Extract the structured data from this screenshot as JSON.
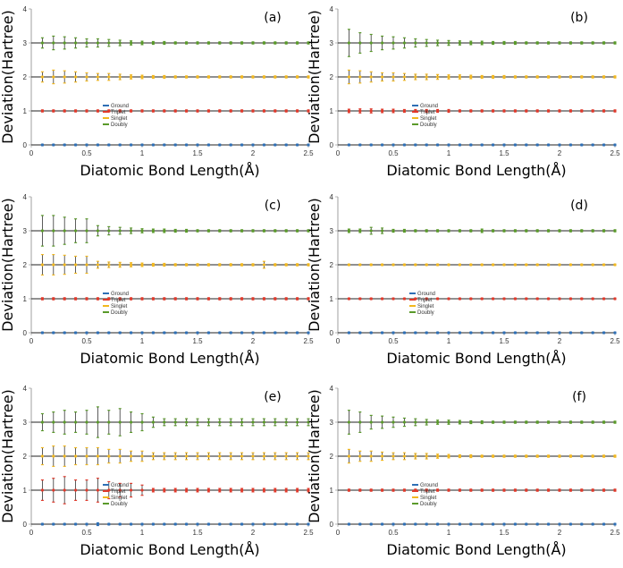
{
  "chart_data": [
    {
      "type": "scatter",
      "panel_label": "(a)",
      "xlabel": "Diatomic Bond Length(Å)",
      "ylabel": "Deviation(Hartree)",
      "xlim": [
        0,
        2.5
      ],
      "ylim": [
        0,
        4
      ],
      "xticks": [
        "0",
        "0.5",
        "1",
        "1.5",
        "2",
        "2.5"
      ],
      "yticks": [
        "0",
        "1",
        "2",
        "3",
        "4"
      ],
      "legend_position": "center",
      "series": [
        {
          "name": "Ground",
          "color": "#2e6fb5",
          "offset": 0,
          "errors": [
            0.02,
            0.02,
            0.02,
            0.02,
            0.02,
            0.02,
            0.02,
            0.02,
            0.02,
            0.02,
            0.02,
            0.02,
            0.02,
            0.02,
            0.02,
            0.02,
            0.02,
            0.02,
            0.02,
            0.02,
            0.02,
            0.02,
            0.02,
            0.02,
            0.02
          ]
        },
        {
          "name": "Triplet",
          "color": "#e0392b",
          "offset": 1,
          "errors": [
            0.03,
            0.03,
            0.03,
            0.03,
            0.03,
            0.03,
            0.03,
            0.03,
            0.03,
            0.03,
            0.03,
            0.03,
            0.03,
            0.03,
            0.03,
            0.03,
            0.03,
            0.03,
            0.03,
            0.03,
            0.03,
            0.03,
            0.03,
            0.03,
            0.03
          ]
        },
        {
          "name": "Singlet",
          "color": "#f2b81f",
          "offset": 2,
          "errors": [
            0.15,
            0.2,
            0.18,
            0.15,
            0.12,
            0.1,
            0.1,
            0.08,
            0.06,
            0.05,
            0.04,
            0.04,
            0.03,
            0.03,
            0.03,
            0.03,
            0.03,
            0.03,
            0.03,
            0.03,
            0.03,
            0.03,
            0.03,
            0.03,
            0.03
          ]
        },
        {
          "name": "Doubly",
          "color": "#5a9a2a",
          "offset": 3,
          "errors": [
            0.15,
            0.2,
            0.18,
            0.15,
            0.12,
            0.12,
            0.1,
            0.08,
            0.06,
            0.05,
            0.04,
            0.04,
            0.03,
            0.03,
            0.03,
            0.03,
            0.03,
            0.03,
            0.03,
            0.03,
            0.03,
            0.03,
            0.03,
            0.03,
            0.03
          ]
        }
      ]
    },
    {
      "type": "scatter",
      "panel_label": "(b)",
      "xlabel": "Diatomic Bond Length(Å)",
      "ylabel": "Deviation(Hartree)",
      "xlim": [
        0,
        2.5
      ],
      "ylim": [
        0,
        4
      ],
      "xticks": [
        "0",
        "0.5",
        "1",
        "1.5",
        "2",
        "2.5"
      ],
      "yticks": [
        "0",
        "1",
        "2",
        "3",
        "4"
      ],
      "legend_position": "center-right",
      "series": [
        {
          "name": "Ground",
          "color": "#2e6fb5",
          "offset": 0,
          "errors": [
            0.02,
            0.02,
            0.02,
            0.02,
            0.02,
            0.02,
            0.02,
            0.02,
            0.02,
            0.02,
            0.02,
            0.02,
            0.02,
            0.02,
            0.02,
            0.02,
            0.02,
            0.02,
            0.02,
            0.02,
            0.02,
            0.02,
            0.02,
            0.02,
            0.02
          ]
        },
        {
          "name": "Triplet",
          "color": "#e0392b",
          "offset": 1,
          "errors": [
            0.05,
            0.06,
            0.06,
            0.05,
            0.05,
            0.04,
            0.04,
            0.04,
            0.04,
            0.04,
            0.03,
            0.03,
            0.03,
            0.03,
            0.03,
            0.03,
            0.03,
            0.03,
            0.03,
            0.03,
            0.03,
            0.03,
            0.03,
            0.03,
            0.03
          ]
        },
        {
          "name": "Singlet",
          "color": "#f2b81f",
          "offset": 2,
          "errors": [
            0.2,
            0.18,
            0.15,
            0.12,
            0.12,
            0.1,
            0.08,
            0.08,
            0.07,
            0.06,
            0.06,
            0.05,
            0.04,
            0.04,
            0.04,
            0.03,
            0.03,
            0.03,
            0.03,
            0.03,
            0.03,
            0.03,
            0.03,
            0.03,
            0.03
          ]
        },
        {
          "name": "Doubly",
          "color": "#5a9a2a",
          "offset": 3,
          "errors": [
            0.4,
            0.3,
            0.25,
            0.2,
            0.18,
            0.15,
            0.12,
            0.1,
            0.08,
            0.07,
            0.06,
            0.05,
            0.05,
            0.04,
            0.04,
            0.04,
            0.03,
            0.03,
            0.03,
            0.03,
            0.03,
            0.03,
            0.03,
            0.03,
            0.03
          ]
        }
      ]
    },
    {
      "type": "scatter",
      "panel_label": "(c)",
      "xlabel": "Diatomic Bond Length(Å)",
      "ylabel": "Deviation(Hartree)",
      "xlim": [
        0,
        2.5
      ],
      "ylim": [
        0,
        4
      ],
      "xticks": [
        "0",
        "0.5",
        "1",
        "1.5",
        "2",
        "2.5"
      ],
      "yticks": [
        "0",
        "1",
        "2",
        "3",
        "4"
      ],
      "legend_position": "center",
      "series": [
        {
          "name": "Ground",
          "color": "#2e6fb5",
          "offset": 0,
          "errors": [
            0.02,
            0.02,
            0.02,
            0.02,
            0.02,
            0.02,
            0.02,
            0.02,
            0.02,
            0.02,
            0.02,
            0.02,
            0.02,
            0.02,
            0.02,
            0.02,
            0.02,
            0.02,
            0.02,
            0.02,
            0.02,
            0.02,
            0.02,
            0.02,
            0.02
          ]
        },
        {
          "name": "Triplet",
          "color": "#e0392b",
          "offset": 1,
          "errors": [
            0.03,
            0.03,
            0.03,
            0.03,
            0.03,
            0.03,
            0.03,
            0.03,
            0.03,
            0.03,
            0.03,
            0.03,
            0.03,
            0.03,
            0.03,
            0.03,
            0.03,
            0.03,
            0.03,
            0.03,
            0.03,
            0.03,
            0.03,
            0.03,
            0.03
          ]
        },
        {
          "name": "Singlet",
          "color": "#f2b81f",
          "offset": 2,
          "errors": [
            0.3,
            0.3,
            0.28,
            0.25,
            0.25,
            0.1,
            0.08,
            0.07,
            0.06,
            0.05,
            0.04,
            0.04,
            0.03,
            0.03,
            0.03,
            0.03,
            0.03,
            0.03,
            0.03,
            0.03,
            0.1,
            0.03,
            0.03,
            0.03,
            0.03
          ]
        },
        {
          "name": "Doubly",
          "color": "#5a9a2a",
          "offset": 3,
          "errors": [
            0.45,
            0.45,
            0.4,
            0.35,
            0.35,
            0.15,
            0.12,
            0.1,
            0.08,
            0.06,
            0.05,
            0.05,
            0.04,
            0.04,
            0.03,
            0.03,
            0.03,
            0.03,
            0.03,
            0.03,
            0.03,
            0.03,
            0.03,
            0.03,
            0.03
          ]
        }
      ]
    },
    {
      "type": "scatter",
      "panel_label": "(d)",
      "xlabel": "Diatomic Bond Length(Å)",
      "ylabel": "Deviation(Hartree)",
      "xlim": [
        0,
        2.5
      ],
      "ylim": [
        0,
        4
      ],
      "xticks": [
        "0",
        "0.5",
        "1",
        "1.5",
        "2",
        "2.5"
      ],
      "yticks": [
        "0",
        "1",
        "2",
        "3",
        "4"
      ],
      "legend_position": "center-left",
      "series": [
        {
          "name": "Ground",
          "color": "#2e6fb5",
          "offset": 0,
          "errors": [
            0.02,
            0.02,
            0.02,
            0.02,
            0.02,
            0.02,
            0.02,
            0.02,
            0.02,
            0.02,
            0.02,
            0.02,
            0.02,
            0.02,
            0.02,
            0.02,
            0.02,
            0.02,
            0.02,
            0.02,
            0.02,
            0.02,
            0.02,
            0.02,
            0.02
          ]
        },
        {
          "name": "Triplet",
          "color": "#e0392b",
          "offset": 1,
          "errors": [
            0.02,
            0.02,
            0.02,
            0.02,
            0.02,
            0.02,
            0.02,
            0.02,
            0.02,
            0.02,
            0.02,
            0.02,
            0.02,
            0.02,
            0.02,
            0.02,
            0.02,
            0.02,
            0.02,
            0.02,
            0.02,
            0.02,
            0.02,
            0.02,
            0.02
          ]
        },
        {
          "name": "Singlet",
          "color": "#f2b81f",
          "offset": 2,
          "errors": [
            0.02,
            0.02,
            0.02,
            0.02,
            0.02,
            0.02,
            0.02,
            0.02,
            0.02,
            0.02,
            0.02,
            0.02,
            0.02,
            0.02,
            0.02,
            0.02,
            0.02,
            0.02,
            0.02,
            0.02,
            0.02,
            0.02,
            0.02,
            0.02,
            0.02
          ]
        },
        {
          "name": "Doubly",
          "color": "#5a9a2a",
          "offset": 3,
          "errors": [
            0.05,
            0.05,
            0.1,
            0.08,
            0.04,
            0.04,
            0.03,
            0.03,
            0.03,
            0.03,
            0.03,
            0.03,
            0.05,
            0.03,
            0.03,
            0.03,
            0.03,
            0.03,
            0.03,
            0.03,
            0.03,
            0.03,
            0.03,
            0.03,
            0.03
          ]
        }
      ]
    },
    {
      "type": "scatter",
      "panel_label": "(e)",
      "xlabel": "Diatomic Bond Length(Å)",
      "ylabel": "Deviation(Hartree)",
      "xlim": [
        0,
        2.5
      ],
      "ylim": [
        0,
        4
      ],
      "xticks": [
        "0",
        "0.5",
        "1",
        "1.5",
        "2",
        "2.5"
      ],
      "yticks": [
        "0",
        "1",
        "2",
        "3",
        "4"
      ],
      "legend_position": "center",
      "series": [
        {
          "name": "Ground",
          "color": "#2e6fb5",
          "offset": 0,
          "errors": [
            0.02,
            0.02,
            0.02,
            0.02,
            0.02,
            0.04,
            0.02,
            0.02,
            0.02,
            0.02,
            0.02,
            0.02,
            0.02,
            0.02,
            0.02,
            0.02,
            0.02,
            0.02,
            0.02,
            0.02,
            0.02,
            0.02,
            0.02,
            0.02,
            0.02
          ]
        },
        {
          "name": "Triplet",
          "color": "#e0392b",
          "offset": 1,
          "errors": [
            0.3,
            0.35,
            0.4,
            0.3,
            0.3,
            0.35,
            0.25,
            0.2,
            0.2,
            0.15,
            0.05,
            0.05,
            0.05,
            0.05,
            0.05,
            0.05,
            0.05,
            0.05,
            0.05,
            0.05,
            0.05,
            0.05,
            0.05,
            0.05,
            0.05
          ]
        },
        {
          "name": "Singlet",
          "color": "#f2b81f",
          "offset": 2,
          "errors": [
            0.25,
            0.3,
            0.3,
            0.25,
            0.25,
            0.25,
            0.2,
            0.2,
            0.15,
            0.15,
            0.1,
            0.1,
            0.1,
            0.1,
            0.1,
            0.1,
            0.1,
            0.1,
            0.1,
            0.1,
            0.1,
            0.1,
            0.1,
            0.1,
            0.1
          ]
        },
        {
          "name": "Doubly",
          "color": "#5a9a2a",
          "offset": 3,
          "errors": [
            0.25,
            0.3,
            0.35,
            0.3,
            0.35,
            0.45,
            0.35,
            0.4,
            0.3,
            0.25,
            0.15,
            0.1,
            0.1,
            0.1,
            0.1,
            0.1,
            0.1,
            0.1,
            0.1,
            0.1,
            0.1,
            0.1,
            0.1,
            0.1,
            0.1
          ]
        }
      ]
    },
    {
      "type": "scatter",
      "panel_label": "(f)",
      "xlabel": "Diatomic Bond Length(Å)",
      "ylabel": "Deviation(Hartree)",
      "xlim": [
        0,
        2.5
      ],
      "ylim": [
        0,
        4
      ],
      "xticks": [
        "0",
        "0.5",
        "1",
        "1.5",
        "2",
        "2.5"
      ],
      "yticks": [
        "0",
        "1",
        "2",
        "3",
        "4"
      ],
      "legend_position": "center-right",
      "series": [
        {
          "name": "Ground",
          "color": "#2e6fb5",
          "offset": 0,
          "errors": [
            0.02,
            0.02,
            0.02,
            0.02,
            0.02,
            0.02,
            0.02,
            0.02,
            0.02,
            0.02,
            0.02,
            0.02,
            0.02,
            0.02,
            0.02,
            0.02,
            0.02,
            0.02,
            0.02,
            0.02,
            0.02,
            0.02,
            0.02,
            0.02,
            0.02
          ]
        },
        {
          "name": "Triplet",
          "color": "#e0392b",
          "offset": 1,
          "errors": [
            0.03,
            0.03,
            0.03,
            0.03,
            0.03,
            0.03,
            0.03,
            0.03,
            0.03,
            0.03,
            0.03,
            0.03,
            0.03,
            0.03,
            0.03,
            0.03,
            0.03,
            0.03,
            0.03,
            0.03,
            0.03,
            0.03,
            0.03,
            0.03,
            0.03
          ]
        },
        {
          "name": "Singlet",
          "color": "#f2b81f",
          "offset": 2,
          "errors": [
            0.2,
            0.15,
            0.15,
            0.12,
            0.1,
            0.1,
            0.08,
            0.08,
            0.06,
            0.05,
            0.04,
            0.04,
            0.03,
            0.03,
            0.03,
            0.03,
            0.03,
            0.03,
            0.03,
            0.03,
            0.03,
            0.03,
            0.03,
            0.03,
            0.03
          ]
        },
        {
          "name": "Doubly",
          "color": "#5a9a2a",
          "offset": 3,
          "errors": [
            0.35,
            0.3,
            0.2,
            0.18,
            0.15,
            0.12,
            0.1,
            0.08,
            0.06,
            0.06,
            0.05,
            0.04,
            0.04,
            0.03,
            0.03,
            0.03,
            0.03,
            0.03,
            0.03,
            0.03,
            0.03,
            0.03,
            0.03,
            0.03,
            0.03
          ]
        }
      ]
    }
  ]
}
